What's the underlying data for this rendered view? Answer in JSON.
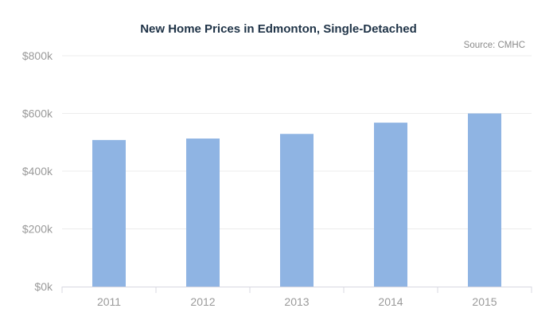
{
  "title": "New Home Prices in Edmonton, Single-Detached",
  "source": "Source: CMHC",
  "chart_data": {
    "type": "bar",
    "title": "New Home Prices in Edmonton, Single-Detached",
    "subtitle": "Source: CMHC",
    "xlabel": "",
    "ylabel": "",
    "categories": [
      "2011",
      "2012",
      "2013",
      "2014",
      "2015"
    ],
    "values": [
      508000,
      513000,
      529000,
      568000,
      600000
    ],
    "ylim": [
      0,
      800000
    ],
    "yticks": [
      0,
      200000,
      400000,
      600000,
      800000
    ],
    "ytick_labels": [
      "$0k",
      "$200k",
      "$400k",
      "$600k",
      "$800k"
    ],
    "grid": true,
    "legend": "none",
    "bar_color": "#8fb4e3"
  }
}
